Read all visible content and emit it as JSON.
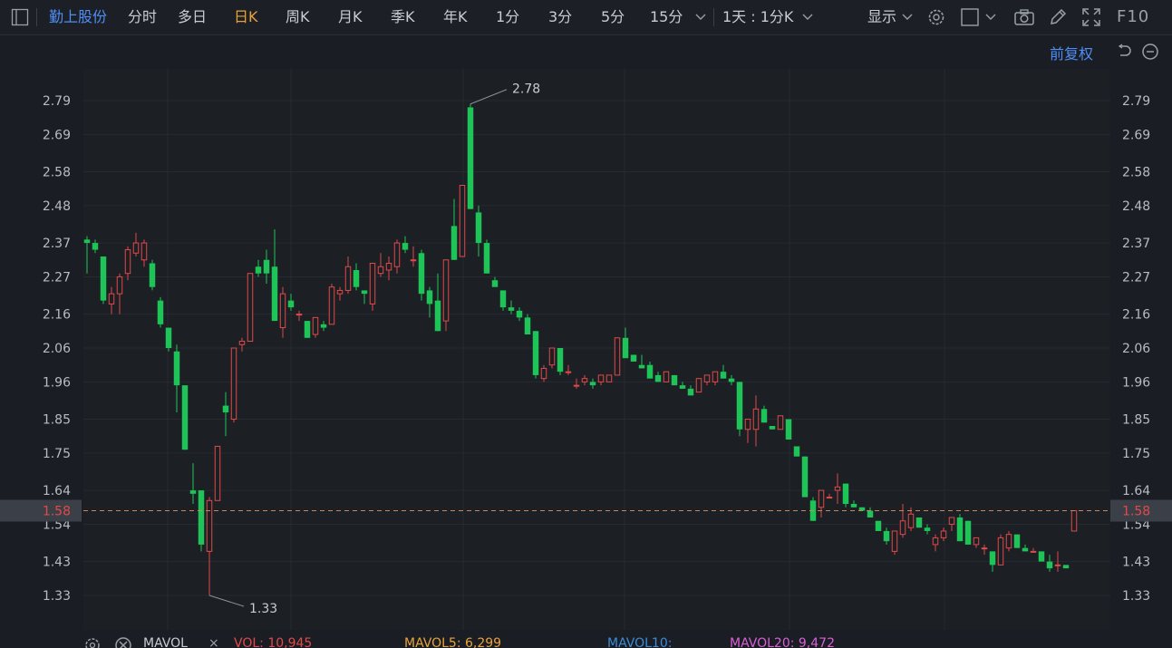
{
  "toolbar": {
    "stock_name": "勤上股份",
    "tabs": [
      "分时",
      "多日",
      "日K",
      "周K",
      "月K",
      "季K",
      "年K",
      "1分",
      "3分",
      "5分",
      "15分"
    ],
    "active_tab": "日K",
    "period_select": "1天 : 1分K",
    "display_select": "显示",
    "f10": "F10"
  },
  "adjust_label": "前复权",
  "price_axis": {
    "ticks": [
      "2.79",
      "2.69",
      "2.58",
      "2.48",
      "2.37",
      "2.27",
      "2.16",
      "2.06",
      "1.96",
      "1.85",
      "1.75",
      "1.64",
      "1.54",
      "1.43",
      "1.33"
    ],
    "current_price": "1.58"
  },
  "annotations": {
    "high": "2.78",
    "low": "1.33"
  },
  "indicator_bar": {
    "name": "MAVOL",
    "vol": "VOL: 10,945",
    "mavol5": "MAVOL5: 6,299",
    "mavol10": "MAVOL10:",
    "mavol20": "MAVOL20: 9,472"
  },
  "colors": {
    "up": "#e04a4a",
    "down": "#1ec458",
    "accent": "#e8a23a",
    "link": "#4f8ef7"
  },
  "chart_data": {
    "type": "candlestick",
    "y_range": [
      1.27,
      2.85
    ],
    "candles": [
      [
        2.38,
        2.39,
        2.28,
        2.37
      ],
      [
        2.37,
        2.38,
        2.34,
        2.35
      ],
      [
        2.33,
        2.33,
        2.19,
        2.2
      ],
      [
        2.19,
        2.24,
        2.16,
        2.22
      ],
      [
        2.22,
        2.28,
        2.16,
        2.27
      ],
      [
        2.28,
        2.36,
        2.26,
        2.35
      ],
      [
        2.34,
        2.4,
        2.33,
        2.37
      ],
      [
        2.32,
        2.38,
        2.3,
        2.37
      ],
      [
        2.31,
        2.32,
        2.23,
        2.24
      ],
      [
        2.2,
        2.21,
        2.12,
        2.13
      ],
      [
        2.12,
        2.12,
        2.05,
        2.06
      ],
      [
        2.05,
        2.07,
        1.87,
        1.95
      ],
      [
        1.95,
        1.95,
        1.76,
        1.76
      ],
      [
        1.64,
        1.72,
        1.6,
        1.63
      ],
      [
        1.64,
        1.64,
        1.46,
        1.48
      ],
      [
        1.46,
        1.62,
        1.33,
        1.61
      ],
      [
        1.61,
        1.77,
        1.61,
        1.77
      ],
      [
        1.89,
        1.93,
        1.8,
        1.87
      ],
      [
        1.85,
        2.06,
        1.84,
        2.06
      ],
      [
        2.07,
        2.09,
        2.05,
        2.08
      ],
      [
        2.08,
        2.28,
        2.08,
        2.28
      ],
      [
        2.3,
        2.32,
        2.27,
        2.28
      ],
      [
        2.32,
        2.35,
        2.25,
        2.28
      ],
      [
        2.3,
        2.41,
        2.14,
        2.14
      ],
      [
        2.12,
        2.24,
        2.09,
        2.22
      ],
      [
        2.2,
        2.22,
        2.17,
        2.18
      ],
      [
        2.16,
        2.17,
        2.14,
        2.16
      ],
      [
        2.14,
        2.14,
        2.09,
        2.09
      ],
      [
        2.1,
        2.15,
        2.09,
        2.15
      ],
      [
        2.13,
        2.14,
        2.11,
        2.12
      ],
      [
        2.13,
        2.25,
        2.13,
        2.24
      ],
      [
        2.22,
        2.24,
        2.2,
        2.23
      ],
      [
        2.23,
        2.33,
        2.22,
        2.3
      ],
      [
        2.29,
        2.31,
        2.23,
        2.24
      ],
      [
        2.23,
        2.23,
        2.19,
        2.22
      ],
      [
        2.19,
        2.31,
        2.17,
        2.31
      ],
      [
        2.28,
        2.34,
        2.27,
        2.3
      ],
      [
        2.29,
        2.33,
        2.26,
        2.31
      ],
      [
        2.3,
        2.38,
        2.28,
        2.37
      ],
      [
        2.37,
        2.39,
        2.34,
        2.35
      ],
      [
        2.32,
        2.36,
        2.3,
        2.32
      ],
      [
        2.34,
        2.35,
        2.2,
        2.22
      ],
      [
        2.23,
        2.24,
        2.15,
        2.19
      ],
      [
        2.2,
        2.28,
        2.11,
        2.11
      ],
      [
        2.14,
        2.32,
        2.11,
        2.32
      ],
      [
        2.42,
        2.5,
        2.32,
        2.32
      ],
      [
        2.33,
        2.54,
        2.33,
        2.54
      ],
      [
        2.77,
        2.78,
        2.47,
        2.47
      ],
      [
        2.46,
        2.48,
        2.33,
        2.37
      ],
      [
        2.37,
        2.38,
        2.28,
        2.28
      ],
      [
        2.26,
        2.27,
        2.24,
        2.24
      ],
      [
        2.23,
        2.23,
        2.17,
        2.18
      ],
      [
        2.18,
        2.2,
        2.16,
        2.17
      ],
      [
        2.17,
        2.18,
        2.14,
        2.15
      ],
      [
        2.15,
        2.16,
        2.1,
        2.1
      ],
      [
        2.11,
        2.11,
        1.97,
        1.98
      ],
      [
        1.97,
        2.01,
        1.96,
        2.0
      ],
      [
        2.01,
        2.06,
        2.0,
        2.06
      ],
      [
        2.06,
        2.06,
        1.98,
        1.99
      ],
      [
        1.99,
        2.01,
        1.98,
        1.99
      ],
      [
        1.95,
        1.97,
        1.94,
        1.95
      ],
      [
        1.96,
        1.98,
        1.95,
        1.97
      ],
      [
        1.96,
        1.97,
        1.94,
        1.95
      ],
      [
        1.96,
        1.98,
        1.95,
        1.98
      ],
      [
        1.96,
        1.98,
        1.96,
        1.98
      ],
      [
        1.98,
        2.09,
        1.98,
        2.09
      ],
      [
        2.09,
        2.12,
        2.04,
        2.03
      ],
      [
        2.04,
        2.04,
        2.02,
        2.02
      ],
      [
        2.01,
        2.04,
        2.0,
        2.0
      ],
      [
        2.01,
        2.02,
        1.97,
        1.97
      ],
      [
        1.98,
        1.99,
        1.96,
        1.96
      ],
      [
        1.96,
        1.99,
        1.97,
        1.99
      ],
      [
        1.98,
        1.98,
        1.95,
        1.95
      ],
      [
        1.95,
        1.96,
        1.94,
        1.94
      ],
      [
        1.94,
        1.95,
        1.92,
        1.92
      ],
      [
        1.93,
        1.97,
        1.93,
        1.97
      ],
      [
        1.96,
        1.98,
        1.95,
        1.98
      ],
      [
        1.96,
        1.99,
        1.95,
        1.99
      ],
      [
        1.99,
        2.01,
        1.97,
        1.97
      ],
      [
        1.97,
        1.98,
        1.95,
        1.96
      ],
      [
        1.96,
        1.96,
        1.8,
        1.82
      ],
      [
        1.82,
        1.85,
        1.78,
        1.85
      ],
      [
        1.82,
        1.92,
        1.77,
        1.88
      ],
      [
        1.88,
        1.89,
        1.84,
        1.84
      ],
      [
        1.83,
        1.83,
        1.82,
        1.82
      ],
      [
        1.82,
        1.86,
        1.82,
        1.86
      ],
      [
        1.85,
        1.85,
        1.79,
        1.79
      ],
      [
        1.77,
        1.77,
        1.74,
        1.74
      ],
      [
        1.74,
        1.74,
        1.62,
        1.62
      ],
      [
        1.61,
        1.62,
        1.55,
        1.55
      ],
      [
        1.59,
        1.64,
        1.56,
        1.64
      ],
      [
        1.62,
        1.63,
        1.62,
        1.62
      ],
      [
        1.64,
        1.69,
        1.6,
        1.65
      ],
      [
        1.66,
        1.66,
        1.59,
        1.6
      ],
      [
        1.6,
        1.61,
        1.59,
        1.59
      ],
      [
        1.59,
        1.59,
        1.58,
        1.58
      ],
      [
        1.58,
        1.59,
        1.56,
        1.56
      ],
      [
        1.55,
        1.55,
        1.52,
        1.52
      ],
      [
        1.52,
        1.53,
        1.48,
        1.49
      ],
      [
        1.46,
        1.52,
        1.45,
        1.52
      ],
      [
        1.51,
        1.6,
        1.5,
        1.55
      ],
      [
        1.53,
        1.59,
        1.52,
        1.57
      ],
      [
        1.56,
        1.56,
        1.53,
        1.53
      ],
      [
        1.53,
        1.54,
        1.51,
        1.52
      ],
      [
        1.48,
        1.51,
        1.46,
        1.5
      ],
      [
        1.5,
        1.53,
        1.49,
        1.52
      ],
      [
        1.54,
        1.56,
        1.52,
        1.56
      ],
      [
        1.56,
        1.57,
        1.49,
        1.49
      ],
      [
        1.55,
        1.55,
        1.48,
        1.48
      ],
      [
        1.48,
        1.5,
        1.47,
        1.5
      ],
      [
        1.47,
        1.48,
        1.45,
        1.47
      ],
      [
        1.46,
        1.46,
        1.4,
        1.42
      ],
      [
        1.42,
        1.51,
        1.42,
        1.5
      ],
      [
        1.47,
        1.52,
        1.46,
        1.51
      ],
      [
        1.51,
        1.51,
        1.47,
        1.47
      ],
      [
        1.47,
        1.48,
        1.46,
        1.46
      ],
      [
        1.46,
        1.47,
        1.46,
        1.46
      ],
      [
        1.46,
        1.46,
        1.43,
        1.43
      ],
      [
        1.43,
        1.45,
        1.4,
        1.41
      ],
      [
        1.42,
        1.46,
        1.4,
        1.42
      ],
      [
        1.42,
        1.42,
        1.41,
        1.41
      ],
      [
        1.52,
        1.58,
        1.52,
        1.58
      ]
    ]
  }
}
